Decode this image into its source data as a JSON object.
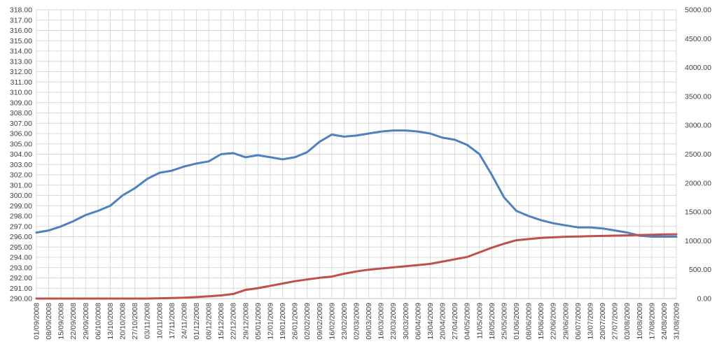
{
  "chart_data": {
    "type": "line",
    "title": "",
    "xlabel": "",
    "ylabel": "",
    "x_tick_labels": [
      "01/09/2008",
      "08/09/2008",
      "15/09/2008",
      "22/09/2008",
      "29/09/2008",
      "06/10/2008",
      "13/10/2008",
      "20/10/2008",
      "27/10/2008",
      "03/11/2008",
      "10/11/2008",
      "17/11/2008",
      "24/11/2008",
      "01/12/2008",
      "08/12/2008",
      "15/12/2008",
      "22/12/2008",
      "29/12/2008",
      "05/01/2009",
      "12/01/2009",
      "19/01/2009",
      "26/01/2009",
      "02/02/2009",
      "09/02/2009",
      "16/02/2009",
      "23/02/2009",
      "02/03/2009",
      "09/03/2009",
      "16/03/2009",
      "23/03/2009",
      "30/03/2009",
      "06/04/2009",
      "13/04/2009",
      "20/04/2009",
      "27/04/2009",
      "04/05/2009",
      "11/05/2009",
      "18/05/2009",
      "25/05/2009",
      "01/06/2009",
      "08/06/2009",
      "15/06/2009",
      "22/06/2009",
      "29/06/2009",
      "06/07/2009",
      "13/07/2009",
      "20/07/2009",
      "27/07/2009",
      "03/08/2009",
      "10/08/2009",
      "17/08/2009",
      "24/08/2009",
      "31/08/2009"
    ],
    "y_left": {
      "min": 290,
      "max": 318,
      "step": 1,
      "tick_labels": [
        "290.00",
        "291.00",
        "292.00",
        "293.00",
        "294.00",
        "295.00",
        "296.00",
        "297.00",
        "298.00",
        "299.00",
        "300.00",
        "301.00",
        "302.00",
        "303.00",
        "304.00",
        "305.00",
        "306.00",
        "307.00",
        "308.00",
        "309.00",
        "310.00",
        "311.00",
        "312.00",
        "313.00",
        "314.00",
        "315.00",
        "316.00",
        "317.00",
        "318.00"
      ]
    },
    "y_right": {
      "min": 0,
      "max": 5000,
      "step": 500,
      "tick_labels": [
        "0.00",
        "500.00",
        "1000.00",
        "1500.00",
        "2000.00",
        "2500.00",
        "3000.00",
        "3500.00",
        "4000.00",
        "4500.00",
        "5000.00"
      ]
    },
    "grid": true,
    "legend": "none",
    "series": [
      {
        "axis": "left",
        "color": "#4f81bd",
        "points": [
          [
            "01/09/2008",
            296.4
          ],
          [
            "08/09/2008",
            296.6
          ],
          [
            "15/09/2008",
            297.0
          ],
          [
            "22/09/2008",
            297.5
          ],
          [
            "29/09/2008",
            298.1
          ],
          [
            "06/10/2008",
            298.5
          ],
          [
            "13/10/2008",
            299.0
          ],
          [
            "20/10/2008",
            300.0
          ],
          [
            "27/10/2008",
            300.7
          ],
          [
            "03/11/2008",
            301.6
          ],
          [
            "10/11/2008",
            302.2
          ],
          [
            "17/11/2008",
            302.4
          ],
          [
            "24/11/2008",
            302.8
          ],
          [
            "01/12/2008",
            303.1
          ],
          [
            "08/12/2008",
            303.3
          ],
          [
            "15/12/2008",
            304.0
          ],
          [
            "22/12/2008",
            304.1
          ],
          [
            "29/12/2008",
            303.7
          ],
          [
            "05/01/2009",
            303.9
          ],
          [
            "12/01/2009",
            303.7
          ],
          [
            "19/01/2009",
            303.5
          ],
          [
            "26/01/2009",
            303.7
          ],
          [
            "02/02/2009",
            304.2
          ],
          [
            "09/02/2009",
            305.2
          ],
          [
            "16/02/2009",
            305.9
          ],
          [
            "23/02/2009",
            305.7
          ],
          [
            "02/03/2009",
            305.8
          ],
          [
            "09/03/2009",
            306.0
          ],
          [
            "16/03/2009",
            306.2
          ],
          [
            "23/03/2009",
            306.3
          ],
          [
            "30/03/2009",
            306.3
          ],
          [
            "06/04/2009",
            306.2
          ],
          [
            "13/04/2009",
            306.0
          ],
          [
            "20/04/2009",
            305.6
          ],
          [
            "27/04/2009",
            305.4
          ],
          [
            "04/05/2009",
            304.9
          ],
          [
            "11/05/2009",
            304.0
          ],
          [
            "18/05/2009",
            302.0
          ],
          [
            "25/05/2009",
            299.8
          ],
          [
            "01/06/2009",
            298.5
          ],
          [
            "08/06/2009",
            298.0
          ],
          [
            "15/06/2009",
            297.6
          ],
          [
            "22/06/2009",
            297.3
          ],
          [
            "29/06/2009",
            297.1
          ],
          [
            "06/07/2009",
            296.9
          ],
          [
            "13/07/2009",
            296.9
          ],
          [
            "20/07/2009",
            296.8
          ],
          [
            "27/07/2009",
            296.6
          ],
          [
            "03/08/2009",
            296.4
          ],
          [
            "10/08/2009",
            296.1
          ],
          [
            "17/08/2009",
            296.0
          ],
          [
            "24/08/2009",
            296.0
          ],
          [
            "31/08/2009",
            296.0
          ]
        ]
      },
      {
        "axis": "right",
        "color": "#c0504d",
        "points": [
          [
            "01/09/2008",
            0
          ],
          [
            "08/09/2008",
            0
          ],
          [
            "15/09/2008",
            0
          ],
          [
            "22/09/2008",
            0
          ],
          [
            "29/09/2008",
            0
          ],
          [
            "06/10/2008",
            0
          ],
          [
            "13/10/2008",
            0
          ],
          [
            "20/10/2008",
            0
          ],
          [
            "27/10/2008",
            0
          ],
          [
            "03/11/2008",
            0
          ],
          [
            "10/11/2008",
            5
          ],
          [
            "17/11/2008",
            10
          ],
          [
            "24/11/2008",
            15
          ],
          [
            "01/12/2008",
            25
          ],
          [
            "08/12/2008",
            40
          ],
          [
            "15/12/2008",
            55
          ],
          [
            "22/12/2008",
            80
          ],
          [
            "29/12/2008",
            150
          ],
          [
            "05/01/2009",
            180
          ],
          [
            "12/01/2009",
            220
          ],
          [
            "19/01/2009",
            260
          ],
          [
            "26/01/2009",
            300
          ],
          [
            "02/02/2009",
            330
          ],
          [
            "09/02/2009",
            360
          ],
          [
            "16/02/2009",
            380
          ],
          [
            "23/02/2009",
            430
          ],
          [
            "02/03/2009",
            470
          ],
          [
            "09/03/2009",
            500
          ],
          [
            "16/03/2009",
            520
          ],
          [
            "23/03/2009",
            540
          ],
          [
            "30/03/2009",
            560
          ],
          [
            "06/04/2009",
            580
          ],
          [
            "13/04/2009",
            600
          ],
          [
            "20/04/2009",
            640
          ],
          [
            "27/04/2009",
            680
          ],
          [
            "04/05/2009",
            720
          ],
          [
            "11/05/2009",
            800
          ],
          [
            "18/05/2009",
            880
          ],
          [
            "25/05/2009",
            950
          ],
          [
            "01/06/2009",
            1010
          ],
          [
            "08/06/2009",
            1030
          ],
          [
            "15/06/2009",
            1050
          ],
          [
            "22/06/2009",
            1060
          ],
          [
            "29/06/2009",
            1070
          ],
          [
            "06/07/2009",
            1075
          ],
          [
            "13/07/2009",
            1080
          ],
          [
            "20/07/2009",
            1085
          ],
          [
            "27/07/2009",
            1090
          ],
          [
            "03/08/2009",
            1095
          ],
          [
            "10/08/2009",
            1100
          ],
          [
            "17/08/2009",
            1105
          ],
          [
            "24/08/2009",
            1110
          ],
          [
            "31/08/2009",
            1112
          ]
        ]
      }
    ]
  }
}
